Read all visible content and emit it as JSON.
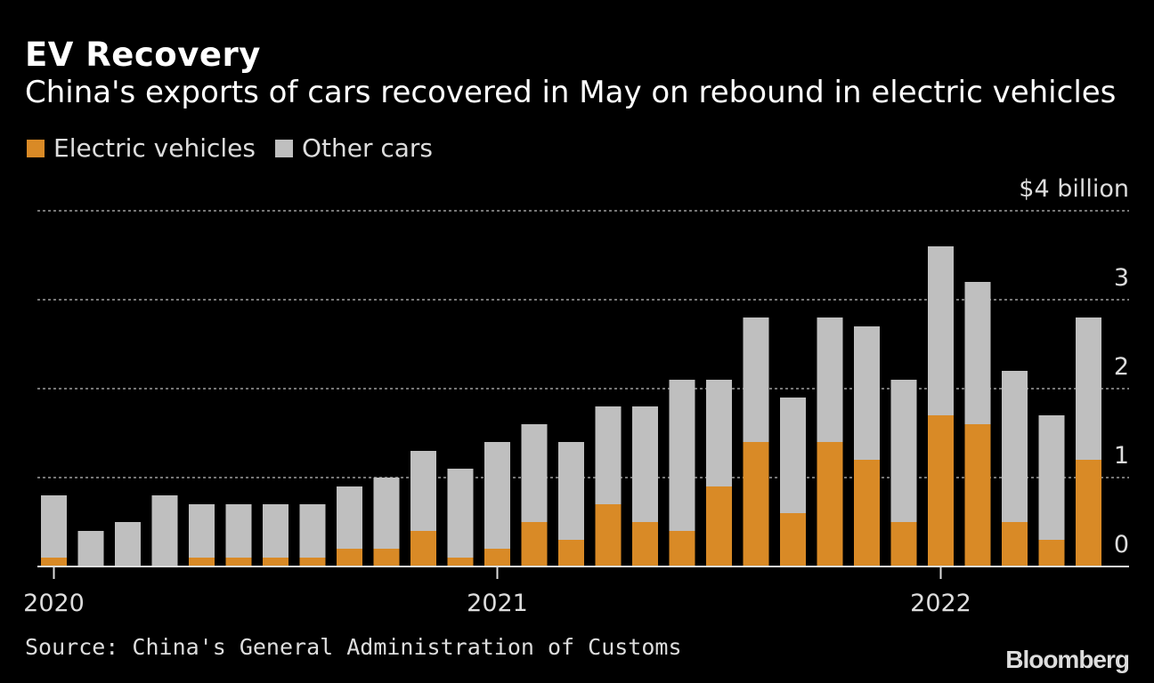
{
  "chart_data": {
    "type": "bar",
    "stacked": true,
    "title": "EV Recovery",
    "subtitle": "China's exports of cars recovered in May on rebound in electric vehicles",
    "ylabel_top": "$4 billion",
    "ylim": [
      0,
      4
    ],
    "yticks": [
      0,
      1,
      2,
      3,
      4
    ],
    "ytick_labels": [
      "0",
      "1",
      "2",
      "3",
      "$4 billion"
    ],
    "grid": true,
    "legend_placement": "top-left",
    "xtick_labels": [
      {
        "index": 0,
        "label": "2020"
      },
      {
        "index": 12,
        "label": "2021"
      },
      {
        "index": 24,
        "label": "2022"
      }
    ],
    "categories": [
      "Jan 2020",
      "Feb 2020",
      "Mar 2020",
      "Apr 2020",
      "May 2020",
      "Jun 2020",
      "Jul 2020",
      "Aug 2020",
      "Sep 2020",
      "Oct 2020",
      "Nov 2020",
      "Dec 2020",
      "Jan 2021",
      "Feb 2021",
      "Mar 2021",
      "Apr 2021",
      "May 2021",
      "Jun 2021",
      "Jul 2021",
      "Aug 2021",
      "Sep 2021",
      "Oct 2021",
      "Nov 2021",
      "Dec 2021",
      "Jan 2022",
      "Feb 2022",
      "Mar 2022",
      "Apr 2022",
      "May 2022"
    ],
    "series": [
      {
        "name": "Electric vehicles",
        "color": "#d98a26",
        "values": [
          0.1,
          0,
          0,
          0,
          0.1,
          0.1,
          0.1,
          0.1,
          0.2,
          0.2,
          0.4,
          0.1,
          0.2,
          0.5,
          0.3,
          0.7,
          0.5,
          0.4,
          0.9,
          1.4,
          0.6,
          1.4,
          1.2,
          0.5,
          1.7,
          1.6,
          0.5,
          0.3,
          1.2
        ]
      },
      {
        "name": "Other cars",
        "color": "#bfbfbf",
        "values": [
          0.7,
          0.4,
          0.5,
          0.8,
          0.6,
          0.6,
          0.6,
          0.6,
          0.7,
          0.8,
          0.9,
          1.0,
          1.2,
          1.1,
          1.1,
          1.1,
          1.3,
          1.7,
          1.2,
          1.4,
          1.3,
          1.4,
          1.5,
          1.6,
          1.9,
          1.6,
          1.7,
          1.4,
          1.6
        ]
      }
    ]
  },
  "source": "Source: China's General Administration of Customs",
  "logo": "Bloomberg"
}
